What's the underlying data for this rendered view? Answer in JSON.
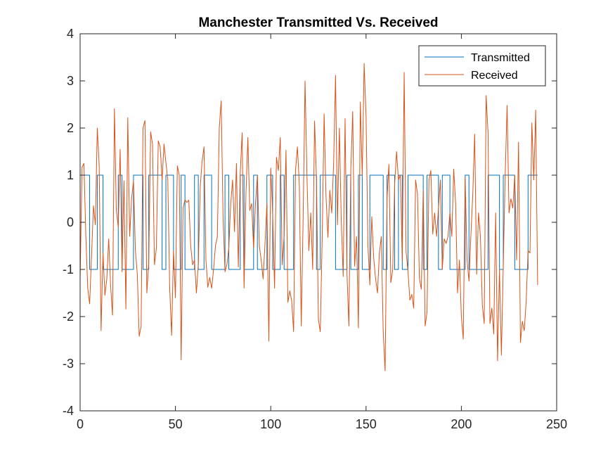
{
  "chart_data": {
    "type": "line",
    "title": "Manchester Transmitted Vs. Received",
    "xlabel": "",
    "ylabel": "",
    "xlim": [
      0,
      250
    ],
    "ylim": [
      -4,
      4
    ],
    "x_ticks": [
      "0",
      "50",
      "100",
      "150",
      "200",
      "250"
    ],
    "y_ticks": [
      "-4",
      "-3",
      "-2",
      "-1",
      "0",
      "1",
      "2",
      "3",
      "4"
    ],
    "grid": false,
    "legend_position": "top-right",
    "series": [
      {
        "name": "Transmitted",
        "color": "#0072BD",
        "x": [
          0,
          5,
          5,
          9,
          9,
          12,
          12,
          20,
          20,
          22,
          22,
          28,
          28,
          33,
          33,
          36,
          36,
          43,
          43,
          45,
          45,
          49,
          49,
          53,
          53,
          55,
          55,
          60,
          60,
          62,
          62,
          65,
          65,
          69,
          69,
          76,
          76,
          78,
          78,
          84,
          84,
          86,
          86,
          91,
          91,
          93,
          93,
          98,
          98,
          101,
          101,
          105,
          105,
          107,
          107,
          112,
          112,
          124,
          124,
          126,
          126,
          134,
          134,
          140,
          140,
          142,
          142,
          146,
          146,
          148,
          148,
          152,
          152,
          159,
          159,
          161,
          161,
          165,
          165,
          167,
          167,
          169,
          169,
          172,
          172,
          180,
          180,
          182,
          182,
          188,
          188,
          190,
          190,
          194,
          194,
          202,
          202,
          204,
          204,
          214,
          214,
          220,
          220,
          222,
          222,
          228,
          228,
          235,
          235,
          240
        ],
        "values": [
          1,
          1,
          -1,
          -1,
          1,
          1,
          -1,
          -1,
          1,
          1,
          -1,
          -1,
          1,
          1,
          -1,
          -1,
          1,
          1,
          -1,
          -1,
          1,
          1,
          -1,
          -1,
          1,
          1,
          -1,
          -1,
          1,
          1,
          -1,
          -1,
          1,
          1,
          -1,
          -1,
          1,
          1,
          -1,
          -1,
          1,
          1,
          -1,
          -1,
          1,
          1,
          -1,
          -1,
          1,
          1,
          -1,
          -1,
          1,
          1,
          -1,
          -1,
          1,
          1,
          -1,
          -1,
          1,
          1,
          -1,
          -1,
          1,
          1,
          -1,
          -1,
          1,
          1,
          -1,
          -1,
          1,
          1,
          -1,
          -1,
          1,
          1,
          -1,
          -1,
          1,
          1,
          -1,
          -1,
          1,
          1,
          -1,
          -1,
          1,
          1,
          -1,
          -1,
          1,
          1,
          -1,
          -1,
          1,
          1,
          -1,
          -1,
          1,
          1,
          -1,
          -1,
          1,
          1,
          -1,
          -1,
          1,
          1
        ]
      },
      {
        "name": "Received",
        "color": "#D95319",
        "x": [
          0,
          1,
          2,
          3,
          4,
          5,
          6,
          7,
          8,
          9,
          10,
          11,
          12,
          13,
          14,
          15,
          16,
          17,
          18,
          19,
          20,
          21,
          22,
          23,
          24,
          25,
          26,
          27,
          28,
          29,
          30,
          31,
          32,
          33,
          34,
          35,
          36,
          37,
          38,
          39,
          40,
          41,
          42,
          43,
          44,
          45,
          46,
          47,
          48,
          49,
          50,
          51,
          52,
          53,
          54,
          55,
          56,
          57,
          58,
          59,
          60,
          61,
          62,
          63,
          64,
          65,
          66,
          67,
          68,
          69,
          70,
          71,
          72,
          73,
          74,
          75,
          76,
          77,
          78,
          79,
          80,
          81,
          82,
          83,
          84,
          85,
          86,
          87,
          88,
          89,
          90,
          91,
          92,
          93,
          94,
          95,
          96,
          97,
          98,
          99,
          100,
          101,
          102,
          103,
          104,
          105,
          106,
          107,
          108,
          109,
          110,
          111,
          112,
          113,
          114,
          115,
          116,
          117,
          118,
          119,
          120,
          121,
          122,
          123,
          124,
          125,
          126,
          127,
          128,
          129,
          130,
          131,
          132,
          133,
          134,
          135,
          136,
          137,
          138,
          139,
          140,
          141,
          142,
          143,
          144,
          145,
          146,
          147,
          148,
          149,
          150,
          151,
          152,
          153,
          154,
          155,
          156,
          157,
          158,
          159,
          160,
          161,
          162,
          163,
          164,
          165,
          166,
          167,
          168,
          169,
          170,
          171,
          172,
          173,
          174,
          175,
          176,
          177,
          178,
          179,
          180,
          181,
          182,
          183,
          184,
          185,
          186,
          187,
          188,
          189,
          190,
          191,
          192,
          193,
          194,
          195,
          196,
          197,
          198,
          199,
          200,
          201,
          202,
          203,
          204,
          205,
          206,
          207,
          208,
          209,
          210,
          211,
          212,
          213,
          214,
          215,
          216,
          217,
          218,
          219,
          220,
          221,
          222,
          223,
          224,
          225,
          226,
          227,
          228,
          229,
          230,
          231,
          232,
          233,
          234,
          235,
          236,
          237,
          238,
          239,
          240
        ],
        "values": [
          -1.22,
          1.17,
          1.25,
          -0.3,
          -1.4,
          -1.73,
          -0.7,
          0.35,
          -0.05,
          2.0,
          1.2,
          -2.3,
          -0.65,
          -1.55,
          -1.2,
          -0.35,
          -1.35,
          -1.97,
          2.41,
          0.25,
          -0.1,
          1.55,
          -1.05,
          0.88,
          -1.84,
          2.22,
          -0.3,
          0.5,
          0.88,
          -0.6,
          -1.1,
          -2.42,
          -2.2,
          2.0,
          2.16,
          -1.5,
          -0.85,
          1.92,
          1.65,
          -0.9,
          -0.55,
          1.73,
          1.6,
          0.9,
          1.66,
          1.27,
          0.9,
          -1.4,
          -2.4,
          -0.6,
          -1.6,
          1.2,
          1.0,
          -2.92,
          0.3,
          0.48,
          0.42,
          0.47,
          -0.5,
          -0.9,
          -0.8,
          -1.5,
          -0.9,
          0.75,
          1.3,
          1.6,
          -0.8,
          -1.38,
          -1.17,
          -1.4,
          -1.0,
          -0.5,
          -0.3,
          2.0,
          2.58,
          0.1,
          -1.05,
          -0.9,
          -0.55,
          0.4,
          0.9,
          -0.2,
          1.25,
          -0.95,
          1.05,
          1.9,
          -1.4,
          0.6,
          1.8,
          0.25,
          0.4,
          -0.55,
          0.4,
          1.0,
          -0.5,
          -0.8,
          -1.2,
          -0.45,
          0.4,
          -2.52,
          1.15,
          0.2,
          -1.4,
          1.38,
          1.1,
          1.8,
          -0.9,
          -0.3,
          1.53,
          -1.7,
          -1.45,
          -1.67,
          -2.32,
          1.1,
          1.6,
          0.8,
          -2.2,
          0.1,
          3.0,
          1.0,
          -0.6,
          0.2,
          -1.0,
          2.15,
          0.9,
          -2.06,
          -2.32,
          -0.3,
          2.3,
          0.55,
          -0.32,
          0.68,
          0.2,
          1.25,
          3.12,
          -0.05,
          2.0,
          0.05,
          -1.15,
          2.2,
          -1.1,
          -2.2,
          1.1,
          2.35,
          -0.93,
          -0.3,
          -2.24,
          2.55,
          1.0,
          3.37,
          2.25,
          -0.5,
          -1.33,
          0.12,
          -0.75,
          -1.2,
          -1.5,
          -0.65,
          -0.3,
          -2.32,
          -3.15,
          0.5,
          1.23,
          -1.28,
          -1.0,
          0.8,
          1.5,
          0.9,
          1.0,
          -0.82,
          3.18,
          -0.62,
          -1.04,
          -1.65,
          -1.53,
          -1.82,
          0.9,
          0.6,
          -1.2,
          -1.42,
          0.68,
          -2.2,
          -1.9,
          0.9,
          1.1,
          -0.25,
          0.2,
          -0.3,
          0.3,
          0.9,
          -1.0,
          -0.35,
          -0.45,
          -0.3,
          0.2,
          -0.3,
          1.13,
          0.4,
          -1.5,
          -0.8,
          -2.0,
          -2.48,
          0.95,
          -0.8,
          -1.25,
          -0.28,
          0.6,
          1.87,
          -1.1,
          0.2,
          -0.3,
          -1.75,
          -2.15,
          2.69,
          1.9,
          -2.15,
          -1.82,
          -2.37,
          0.2,
          -2.94,
          -1.0,
          -2.82,
          -0.9,
          1.0,
          2.48,
          0.2,
          0.5,
          0.3,
          1.0,
          -0.8,
          1.7,
          -2.55,
          -2.1,
          -2.3,
          -1.68,
          -0.6,
          -0.65,
          2.11,
          0.9,
          2.38,
          -1.33
        ]
      }
    ]
  }
}
